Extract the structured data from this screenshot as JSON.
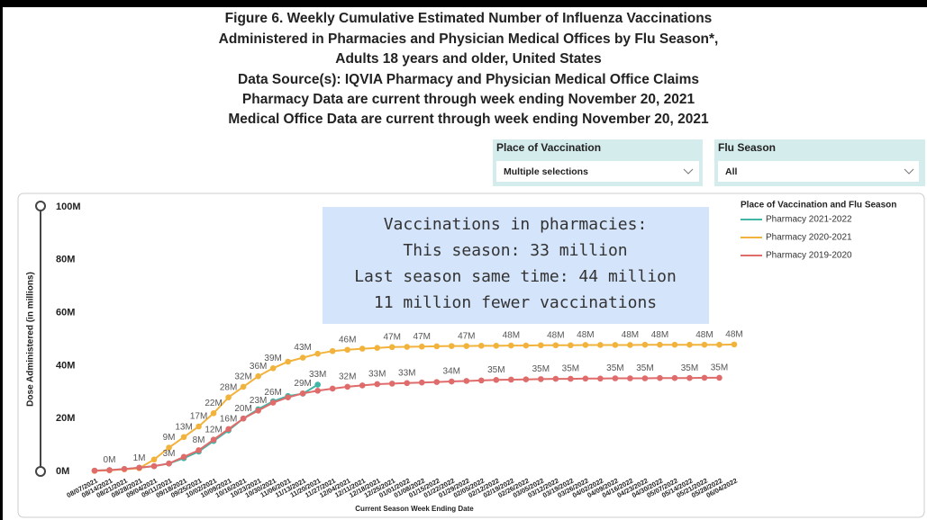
{
  "chart_data": {
    "type": "line",
    "title": [
      "Figure 6. Weekly Cumulative Estimated Number of Influenza Vaccinations",
      "Administered in Pharmacies and Physician Medical Offices by Flu Season*,",
      "Adults 18 years and older, United States",
      "Data Source(s): IQVIA Pharmacy and Physician Medical Office Claims",
      "Pharmacy Data are current through week ending November 20, 2021",
      "Medical Office Data are current through week ending November 20, 2021"
    ],
    "x_label": "Current Season Week Ending Date",
    "y_label": "Dose Administered (in millions)",
    "annotation": [
      "Vaccinations in pharmacies:",
      "This season: 33 million",
      "Last season same time: 44 million",
      "11 million fewer vaccinations"
    ],
    "legend_title": "Place of Vaccination and Flu Season",
    "legend": "top-right",
    "categories": [
      "08/07/2021",
      "08/14/2021",
      "08/21/2021",
      "08/28/2021",
      "09/04/2021",
      "09/11/2021",
      "09/18/2021",
      "09/25/2021",
      "10/02/2021",
      "10/09/2021",
      "10/16/2021",
      "10/23/2021",
      "10/30/2021",
      "11/06/2021",
      "11/13/2021",
      "11/20/2021",
      "11/27/2021",
      "12/04/2021",
      "12/11/2021",
      "12/18/2021",
      "12/25/2021",
      "01/01/2022",
      "01/08/2022",
      "01/15/2022",
      "01/22/2022",
      "01/29/2022",
      "02/05/2022",
      "02/12/2022",
      "02/19/2022",
      "02/26/2022",
      "03/05/2022",
      "03/12/2022",
      "03/19/2022",
      "03/26/2022",
      "04/02/2022",
      "04/09/2022",
      "04/16/2022",
      "04/23/2022",
      "04/30/2022",
      "05/07/2022",
      "05/14/2022",
      "05/21/2022",
      "05/28/2022",
      "06/04/2022"
    ],
    "ylim": [
      0,
      100
    ],
    "yticks": [
      {
        "value": 0,
        "label": "0M"
      },
      {
        "value": 20,
        "label": "20M"
      },
      {
        "value": 40,
        "label": "40M"
      },
      {
        "value": 60,
        "label": "60M"
      },
      {
        "value": 80,
        "label": "80M"
      },
      {
        "value": 100,
        "label": "100M"
      }
    ],
    "series": [
      {
        "name": "Pharmacy 2021-2022",
        "color": "#41b6a6",
        "values": [
          0.3,
          0.5,
          0.9,
          1.4,
          2,
          3,
          5,
          7.5,
          11.5,
          15.5,
          20,
          23.5,
          26.5,
          28.5,
          29.4,
          32.8,
          null,
          null,
          null,
          null,
          null,
          null,
          null,
          null,
          null,
          null,
          null,
          null,
          null,
          null,
          null,
          null,
          null,
          null,
          null,
          null,
          null,
          null,
          null,
          null,
          null,
          null,
          null,
          null
        ],
        "value_labels": [
          null,
          null,
          null,
          null,
          null,
          null,
          null,
          null,
          null,
          null,
          null,
          null,
          null,
          null,
          "29M",
          "33M",
          null,
          null,
          null,
          null,
          null,
          null,
          null,
          null,
          null,
          null,
          null,
          null,
          null,
          null,
          null,
          null,
          null,
          null,
          null,
          null,
          null,
          null,
          null,
          null,
          null,
          null,
          null,
          null
        ]
      },
      {
        "name": "Pharmacy 2020-2021",
        "color": "#f2b33d",
        "values": [
          0.2,
          0.4,
          0.8,
          1.2,
          4.5,
          9,
          13,
          17,
          22,
          28,
          32,
          36,
          39,
          41.5,
          43,
          44.5,
          45.5,
          46,
          46.4,
          46.7,
          47,
          47.1,
          47.2,
          47.3,
          47.4,
          47.4,
          47.5,
          47.5,
          47.6,
          47.6,
          47.7,
          47.7,
          47.7,
          47.8,
          47.8,
          47.8,
          47.8,
          47.9,
          47.9,
          47.9,
          47.9,
          47.9,
          47.9,
          48
        ],
        "value_labels": [
          null,
          null,
          null,
          "1M",
          null,
          "9M",
          "13M",
          "17M",
          "22M",
          "28M",
          "32M",
          "36M",
          "39M",
          null,
          "43M",
          null,
          null,
          "46M",
          null,
          null,
          "47M",
          null,
          "47M",
          null,
          null,
          "47M",
          null,
          null,
          "48M",
          null,
          null,
          "48M",
          null,
          "48M",
          null,
          null,
          "48M",
          null,
          "48M",
          null,
          null,
          "48M",
          null,
          "48M"
        ]
      },
      {
        "name": "Pharmacy 2019-2020",
        "color": "#df6b6b",
        "values": [
          0.3,
          0.5,
          0.9,
          1.4,
          2,
          3,
          5.5,
          8,
          12,
          16,
          20,
          23,
          26,
          28,
          29.5,
          30.5,
          31.3,
          32,
          32.5,
          33,
          33.2,
          33.4,
          33.6,
          33.8,
          34,
          34.2,
          34.4,
          34.6,
          34.7,
          34.8,
          34.9,
          35,
          35,
          35.1,
          35.1,
          35.2,
          35.2,
          35.2,
          35.3,
          35.3,
          35.3,
          35.4,
          35.4,
          null
        ],
        "value_labels": [
          null,
          "0M",
          null,
          null,
          null,
          "3M",
          null,
          "8M",
          "12M",
          "16M",
          "20M",
          "23M",
          "26M",
          null,
          null,
          null,
          null,
          "32M",
          null,
          "33M",
          null,
          "33M",
          null,
          null,
          "34M",
          null,
          null,
          "35M",
          null,
          null,
          "35M",
          null,
          "35M",
          null,
          null,
          "35M",
          null,
          "35M",
          null,
          null,
          "35M",
          null,
          "35M",
          null
        ]
      }
    ]
  },
  "filters": [
    {
      "label": "Place of Vaccination",
      "value": "Multiple selections"
    },
    {
      "label": "Flu Season",
      "value": "All"
    }
  ]
}
